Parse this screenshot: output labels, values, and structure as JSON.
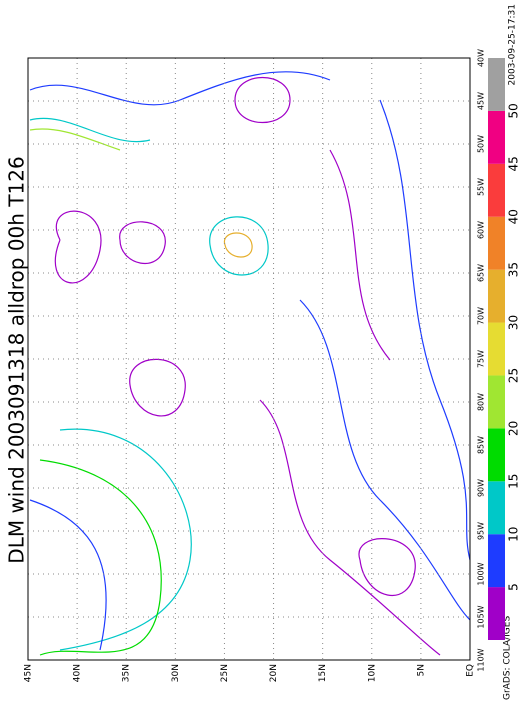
{
  "title": "DLM wind 2003091318 alldrop 00h T126",
  "lat_labels": [
    "45N",
    "40N",
    "35N",
    "30N",
    "25N",
    "20N",
    "15N",
    "10N",
    "5N",
    "EQ"
  ],
  "lon_labels": [
    "110W",
    "105W",
    "100W",
    "95W",
    "90W",
    "85W",
    "80W",
    "75W",
    "70W",
    "65W",
    "60W",
    "55W",
    "50W",
    "45W",
    "40W"
  ],
  "colorbar": {
    "ticks": [
      5,
      10,
      15,
      20,
      25,
      30,
      35,
      40,
      45,
      50
    ],
    "colors": [
      "#a000c8",
      "#1e3cff",
      "#00c8c8",
      "#00dc00",
      "#a0e632",
      "#e6dc32",
      "#e6af2d",
      "#f08228",
      "#fa3c3c",
      "#f00082",
      "#a0a0a0"
    ]
  },
  "credit": "GrADS: COLA/IGES",
  "timestamp": "2003-09-25-17:31"
}
